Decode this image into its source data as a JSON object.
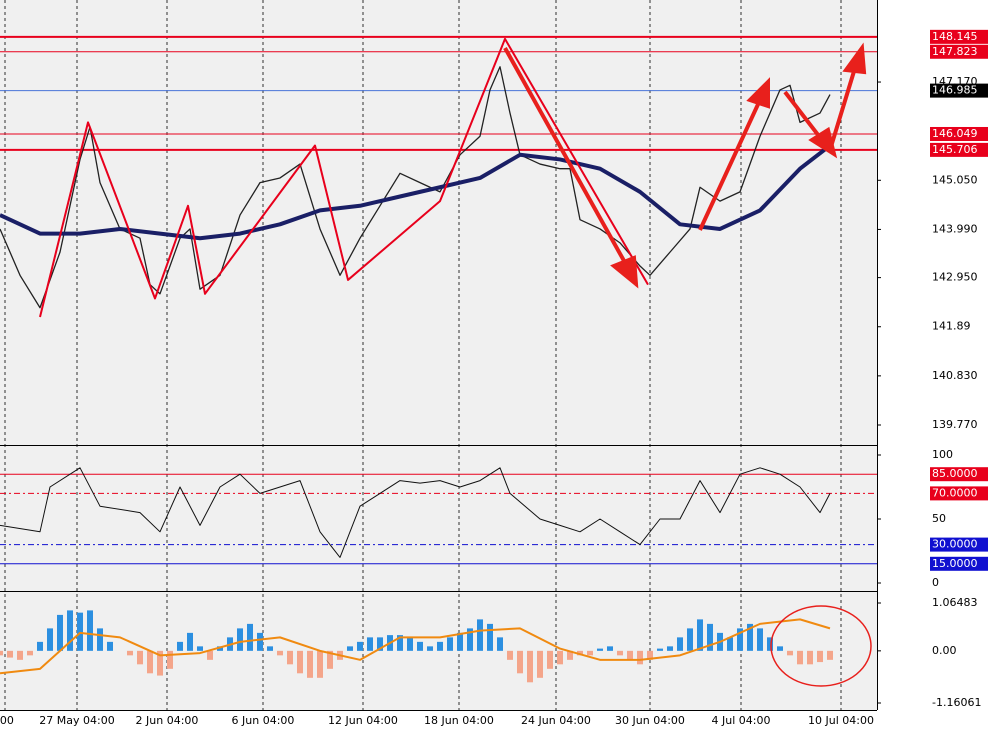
{
  "chart_data": [
    {
      "type": "line",
      "ylim": [
        139.36,
        148.94
      ],
      "yticks": [
        {
          "value": 147.17,
          "label": "147.170"
        },
        {
          "value": 145.05,
          "label": "145.050"
        },
        {
          "value": 143.99,
          "label": "143.990"
        },
        {
          "value": 142.95,
          "label": "142.950"
        },
        141.89,
        {
          "value": 140.83,
          "label": "140.830"
        },
        {
          "value": 139.77,
          "label": "139.770"
        }
      ],
      "hlines": [
        {
          "value": 148.145,
          "color": "#e8001c",
          "width": 2
        },
        {
          "value": 147.823,
          "color": "#e8001c",
          "width": 1
        },
        {
          "value": 146.985,
          "color": "#4a74d8",
          "width": 1
        },
        {
          "value": 146.049,
          "color": "#e8001c",
          "width": 1
        },
        {
          "value": 145.706,
          "color": "#e8001c",
          "width": 2
        }
      ],
      "series": [
        {
          "color": "#222222",
          "width": 1.3,
          "x": [
            0,
            2,
            4,
            6,
            8,
            9,
            10,
            12,
            14,
            15,
            16,
            18,
            19,
            20,
            22,
            24,
            26,
            28,
            30,
            32,
            34,
            36,
            38,
            40,
            42,
            44,
            46,
            48,
            49,
            50,
            51,
            52,
            54,
            56,
            57,
            58,
            60,
            62,
            64,
            65,
            67,
            69,
            70,
            72,
            74,
            76,
            78,
            79,
            80,
            82,
            83
          ],
          "values": [
            144.0,
            143.0,
            142.3,
            143.5,
            145.5,
            146.2,
            145.0,
            144.0,
            143.8,
            142.8,
            142.6,
            143.8,
            144.0,
            142.7,
            143.0,
            144.3,
            145.0,
            145.1,
            145.4,
            144.0,
            143.0,
            143.8,
            144.5,
            145.2,
            145.0,
            144.8,
            145.6,
            146.0,
            147.0,
            147.5,
            146.5,
            145.6,
            145.4,
            145.3,
            145.3,
            144.2,
            144.0,
            143.7,
            143.2,
            143.0,
            143.5,
            144.0,
            144.9,
            144.6,
            144.8,
            146.0,
            147.0,
            147.1,
            146.3,
            146.5,
            146.9
          ]
        },
        {
          "color": "#1a1f66",
          "width": 4,
          "x": [
            0,
            4,
            8,
            12,
            16,
            20,
            24,
            28,
            32,
            36,
            40,
            44,
            48,
            52,
            56,
            60,
            64,
            68,
            72,
            76,
            80,
            83
          ],
          "values": [
            144.3,
            143.9,
            143.9,
            144.0,
            143.9,
            143.8,
            143.9,
            144.1,
            144.4,
            144.5,
            144.7,
            144.9,
            145.1,
            145.6,
            145.5,
            145.3,
            144.8,
            144.1,
            144.0,
            144.4,
            145.3,
            145.8
          ]
        },
        {
          "color": "#e8001c",
          "width": 2,
          "x": [
            4,
            8.8,
            15.5,
            18.8,
            20.5,
            31.5,
            34.8,
            44,
            50.5,
            64.8
          ],
          "values": [
            142.1,
            146.3,
            142.5,
            144.5,
            142.6,
            145.8,
            142.9,
            144.6,
            148.1,
            142.8
          ]
        }
      ]
    },
    {
      "type": "line",
      "ylim": [
        -5.47,
        106.25
      ],
      "yticks": [
        100,
        50,
        0
      ],
      "hlines": [
        {
          "value": 85,
          "label": "85.0000",
          "color": "#e8001c",
          "dash": false
        },
        {
          "value": 70,
          "label": "70.0000",
          "color": "#e8001c",
          "dash": true
        },
        {
          "value": 30,
          "label": "30.0000",
          "color": "#1010d0",
          "dash": true
        },
        {
          "value": 15,
          "label": "15.0000",
          "color": "#1010d0",
          "dash": false
        }
      ],
      "series": [
        {
          "color": "#111111",
          "width": 1,
          "x": [
            0,
            4,
            5,
            8,
            10,
            14,
            16,
            18,
            20,
            22,
            24,
            26,
            28,
            30,
            32,
            34,
            36,
            38,
            40,
            42,
            44,
            46,
            48,
            50,
            51,
            54,
            56,
            58,
            60,
            62,
            64,
            66,
            68,
            70,
            72,
            74,
            76,
            78,
            80,
            82,
            83
          ],
          "values": [
            45,
            40,
            75,
            90,
            60,
            55,
            40,
            75,
            45,
            75,
            85,
            70,
            75,
            80,
            40,
            20,
            60,
            70,
            80,
            78,
            80,
            75,
            80,
            90,
            70,
            50,
            45,
            40,
            50,
            40,
            30,
            50,
            50,
            80,
            55,
            85,
            90,
            85,
            75,
            55,
            70
          ]
        }
      ]
    },
    {
      "type": "histogram",
      "ylim": [
        -1.3164,
        1.2873
      ],
      "yticks": [
        1.06483,
        {
          "value": 0,
          "label": "0.00"
        },
        -1.16061
      ],
      "xlim": [
        0,
        87.7
      ],
      "xticks": [
        {
          "value": 0.5,
          "label": ":00"
        },
        {
          "value": 7.7,
          "label": "27 May 04:00"
        },
        {
          "value": 16.7,
          "label": "2 Jun 04:00"
        },
        {
          "value": 26.3,
          "label": "6 Jun 04:00"
        },
        {
          "value": 36.3,
          "label": "12 Jun 04:00"
        },
        {
          "value": 45.9,
          "label": "18 Jun 04:00"
        },
        {
          "value": 55.6,
          "label": "24 Jun 04:00"
        },
        {
          "value": 65,
          "label": "30 Jun 04:00"
        },
        {
          "value": 74.1,
          "label": "4 Jul 04:00"
        },
        {
          "value": 84.1,
          "label": "10 Jul 04:00"
        }
      ],
      "up_color": "#2c8fe0",
      "down_color": "#f4a58a",
      "values": [
        -0.1,
        -0.15,
        -0.2,
        -0.1,
        0.2,
        0.5,
        0.8,
        0.9,
        0.85,
        0.9,
        0.5,
        0.2,
        0,
        -0.1,
        -0.3,
        -0.5,
        -0.55,
        -0.4,
        0.2,
        0.4,
        0.1,
        -0.2,
        0.1,
        0.3,
        0.5,
        0.6,
        0.4,
        0.1,
        -0.1,
        -0.3,
        -0.5,
        -0.6,
        -0.6,
        -0.4,
        -0.2,
        0.1,
        0.2,
        0.3,
        0.3,
        0.35,
        0.35,
        0.3,
        0.2,
        0.1,
        0.2,
        0.3,
        0.4,
        0.5,
        0.7,
        0.6,
        0.3,
        -0.2,
        -0.5,
        -0.7,
        -0.6,
        -0.4,
        -0.3,
        -0.2,
        -0.1,
        -0.1,
        0.05,
        0.1,
        -0.1,
        -0.2,
        -0.3,
        -0.2,
        0.05,
        0.1,
        0.3,
        0.5,
        0.7,
        0.6,
        0.4,
        0.3,
        0.5,
        0.6,
        0.5,
        0.3,
        0.1,
        -0.1,
        -0.3,
        -0.3,
        -0.25,
        -0.2
      ],
      "series": [
        {
          "color": "#f08a10",
          "width": 2,
          "x": [
            0,
            4,
            8,
            12,
            16,
            20,
            24,
            28,
            32,
            36,
            40,
            44,
            48,
            52,
            56,
            60,
            64,
            68,
            72,
            76,
            80,
            83
          ],
          "values": [
            -0.5,
            -0.4,
            0.4,
            0.3,
            -0.1,
            -0.05,
            0.2,
            0.3,
            0.0,
            -0.2,
            0.3,
            0.3,
            0.45,
            0.5,
            0.05,
            -0.2,
            -0.2,
            -0.1,
            0.2,
            0.6,
            0.7,
            0.5
          ]
        }
      ]
    }
  ]
}
